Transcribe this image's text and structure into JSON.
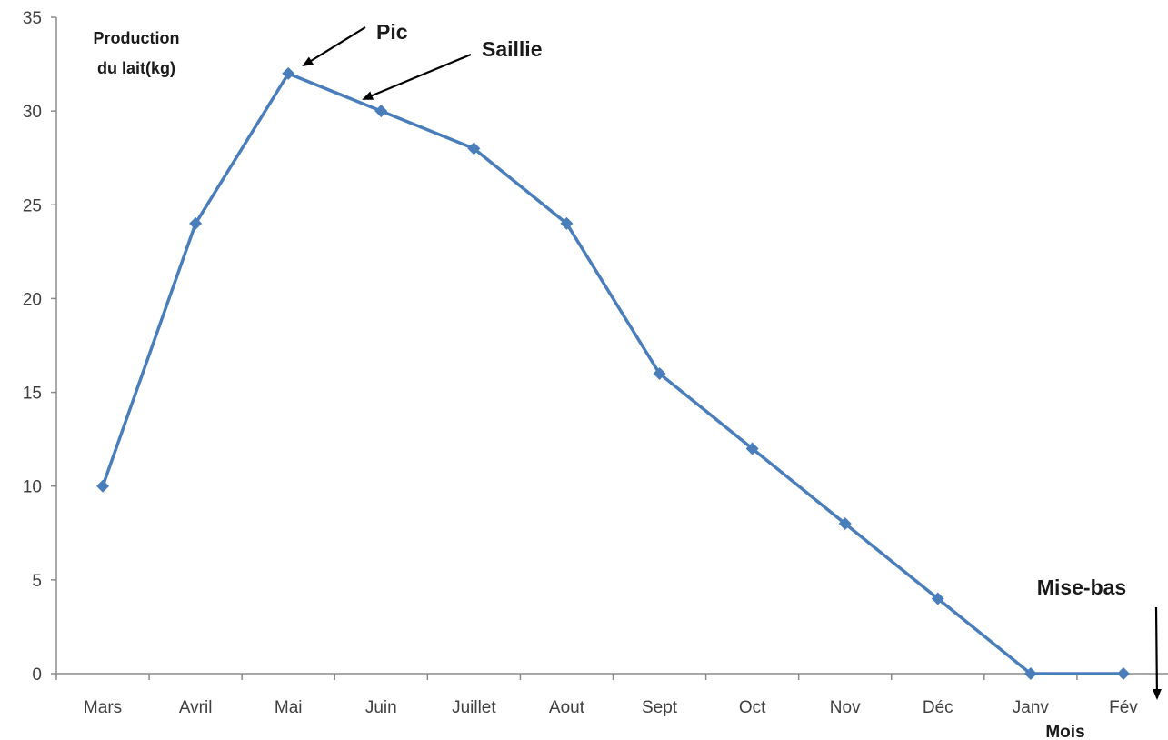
{
  "chart_data": {
    "type": "line",
    "title": "",
    "ylabel_lines": [
      "Production",
      "du lait(kg)"
    ],
    "xlabel": "Mois",
    "categories": [
      "Mars",
      "Avril",
      "Mai",
      "Juin",
      "Juillet",
      "Aout",
      "Sept",
      "Oct",
      "Nov",
      "Déc",
      "Janv",
      "Fév"
    ],
    "series": [
      {
        "values": [
          10,
          24,
          32,
          30,
          28,
          24,
          16,
          12,
          8,
          4,
          0,
          0
        ],
        "color": "#4a7ebb"
      }
    ],
    "ylim": [
      0,
      35
    ],
    "yticks": [
      0,
      5,
      10,
      15,
      20,
      25,
      30,
      35
    ],
    "grid": false,
    "legend": "none",
    "annotations": [
      {
        "id": "pic",
        "text": "Pic",
        "points_to_category": "Mai"
      },
      {
        "id": "saillie",
        "text": "Saillie",
        "points_to_category": "Juin"
      },
      {
        "id": "mise-bas",
        "text": "Mise-bas",
        "points_to": "end of x-axis"
      }
    ]
  }
}
